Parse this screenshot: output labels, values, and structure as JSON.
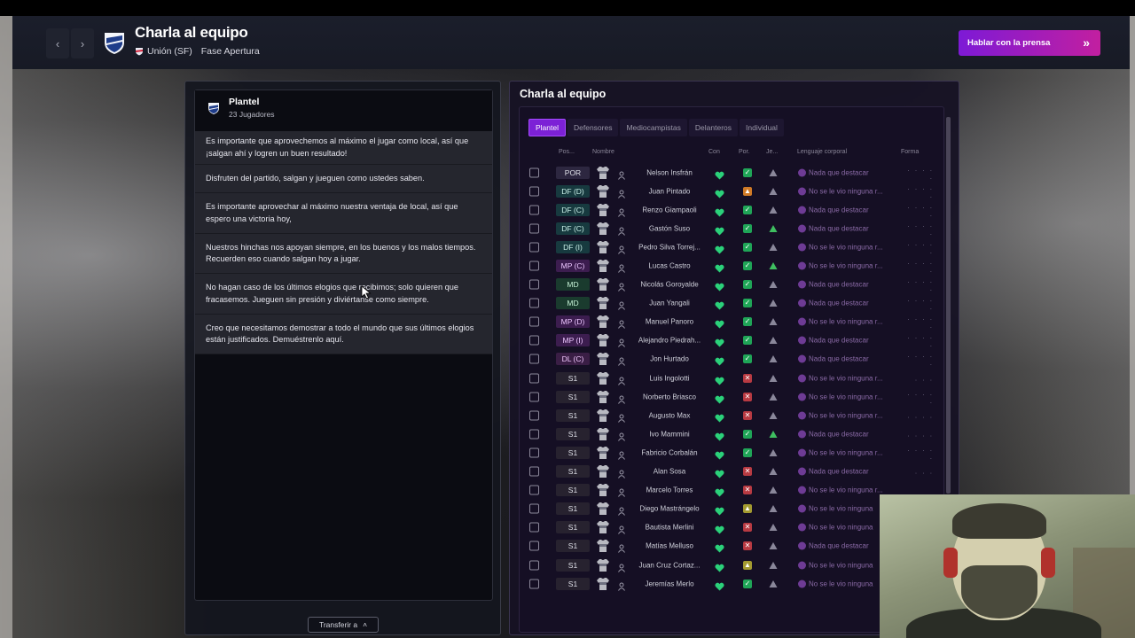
{
  "header": {
    "title": "Charla al equipo",
    "club": "Unión (SF)",
    "stage": "Fase Apertura",
    "press_button": "Hablar con la prensa"
  },
  "left": {
    "squad_name": "Plantel",
    "squad_count": "23 Jugadores",
    "talks": [
      "Es importante que aprovechemos al máximo el jugar como local, así que ¡salgan ahí y logren un buen resultado!",
      "Disfruten del partido, salgan y jueguen como ustedes saben.",
      "Es importante aprovechar al máximo nuestra ventaja de local, así que espero una victoria hoy,",
      "Nuestros hinchas nos apoyan siempre, en los buenos y los malos tiempos. Recuerden eso cuando salgan hoy a jugar.",
      "No hagan caso de los últimos elogios que recibimos; solo quieren que fracasemos. Jueguen sin presión y diviértanse como siempre.",
      "Creo que necesitamos demostrar a todo el mundo que sus últimos elogios están justificados. Demuéstrenlo aquí."
    ],
    "transfer_button": "Transferir a"
  },
  "right": {
    "title": "Charla al equipo",
    "tabs": [
      "Plantel",
      "Defensores",
      "Mediocampistas",
      "Delanteros",
      "Individual"
    ],
    "columns": {
      "pos": "Pos...",
      "name": "Nombre",
      "con": "Con",
      "por": "Por.",
      "je": "Je...",
      "body": "Lenguaje corporal",
      "form": "Forma"
    },
    "players": [
      {
        "pos": "POR",
        "cls": "gk",
        "name": "Nelson Insfrán",
        "cond": "g",
        "tri": "grey",
        "mood": "Nada que destacar",
        "form": ". . . . ."
      },
      {
        "pos": "DF (D)",
        "cls": "df",
        "name": "Juan Pintado",
        "cond": "o",
        "tri": "grey",
        "mood": "No se le vio ninguna r...",
        "form": ". . . . ."
      },
      {
        "pos": "DF (C)",
        "cls": "df",
        "name": "Renzo Giampaoli",
        "cond": "g",
        "tri": "grey",
        "mood": "Nada que destacar",
        "form": ". . . . ."
      },
      {
        "pos": "DF (C)",
        "cls": "df",
        "name": "Gastón Suso",
        "cond": "g",
        "tri": "green",
        "mood": "Nada que destacar",
        "form": ". . . . ."
      },
      {
        "pos": "DF (I)",
        "cls": "df",
        "name": "Pedro Silva Torrej...",
        "cond": "g",
        "tri": "grey",
        "mood": "No se le vio ninguna r...",
        "form": ". . . . ."
      },
      {
        "pos": "MP (C)",
        "cls": "mp",
        "name": "Lucas Castro",
        "cond": "g",
        "tri": "green",
        "mood": "No se le vio ninguna r...",
        "form": ". . . . ."
      },
      {
        "pos": "MD",
        "cls": "md",
        "name": "Nicolás Goroyalde",
        "cond": "g",
        "tri": "grey",
        "mood": "Nada que destacar",
        "form": ". . . . ."
      },
      {
        "pos": "MD",
        "cls": "md",
        "name": "Juan Yangali",
        "cond": "g",
        "tri": "grey",
        "mood": "Nada que destacar",
        "form": ". . . . ."
      },
      {
        "pos": "MP (D)",
        "cls": "mp",
        "name": "Manuel Panoro",
        "cond": "g",
        "tri": "grey",
        "mood": "No se le vio ninguna r...",
        "form": ". . . . ."
      },
      {
        "pos": "MP (I)",
        "cls": "mp",
        "name": "Alejandro Piedrah...",
        "cond": "g",
        "tri": "grey",
        "mood": "Nada que destacar",
        "form": ". . . . ."
      },
      {
        "pos": "DL (C)",
        "cls": "dl",
        "name": "Jon Hurtado",
        "cond": "g",
        "tri": "grey",
        "mood": "Nada que destacar",
        "form": ". . . . ."
      },
      {
        "pos": "S1",
        "cls": "sub",
        "name": "Luis Ingolotti",
        "cond": "r",
        "tri": "grey",
        "mood": "No se le vio ninguna r...",
        "form": ". . ."
      },
      {
        "pos": "S1",
        "cls": "sub",
        "name": "Norberto Briasco",
        "cond": "r",
        "tri": "grey",
        "mood": "No se le vio ninguna r...",
        "form": ". . . . ."
      },
      {
        "pos": "S1",
        "cls": "sub",
        "name": "Augusto Max",
        "cond": "r",
        "tri": "grey",
        "mood": "No se le vio ninguna r...",
        "form": ". . . ."
      },
      {
        "pos": "S1",
        "cls": "sub",
        "name": "Ivo Mammini",
        "cond": "g",
        "tri": "green",
        "mood": "Nada que destacar",
        "form": ". . . ."
      },
      {
        "pos": "S1",
        "cls": "sub",
        "name": "Fabricio Corbalán",
        "cond": "g",
        "tri": "grey",
        "mood": "No se le vio ninguna r...",
        "form": ". . . . ."
      },
      {
        "pos": "S1",
        "cls": "sub",
        "name": "Alan Sosa",
        "cond": "r",
        "tri": "grey",
        "mood": "Nada que destacar",
        "form": ". . ."
      },
      {
        "pos": "S1",
        "cls": "sub",
        "name": "Marcelo Torres",
        "cond": "r",
        "tri": "grey",
        "mood": "No se le vio ninguna r...",
        "form": ""
      },
      {
        "pos": "S1",
        "cls": "sub",
        "name": "Diego Mastrángelo",
        "cond": "y",
        "tri": "grey",
        "mood": "No se le vio ninguna",
        "form": ""
      },
      {
        "pos": "S1",
        "cls": "sub",
        "name": "Bautista Merlini",
        "cond": "r",
        "tri": "grey",
        "mood": "No se le vio ninguna",
        "form": ""
      },
      {
        "pos": "S1",
        "cls": "sub",
        "name": "Matías Melluso",
        "cond": "r",
        "tri": "grey",
        "mood": "Nada que destacar",
        "form": ""
      },
      {
        "pos": "S1",
        "cls": "sub",
        "name": "Juan Cruz Cortaz...",
        "cond": "y",
        "tri": "grey",
        "mood": "No se le vio ninguna",
        "form": ""
      },
      {
        "pos": "S1",
        "cls": "sub",
        "name": "Jeremías Merlo",
        "cond": "g",
        "tri": "grey",
        "mood": "No se le vio ninguna",
        "form": ""
      }
    ]
  },
  "colors": {
    "accent_purple": "#7c21d6",
    "press_gradient_start": "#7d1ad6",
    "press_gradient_end": "#c21fa0",
    "condition_good": "#1fa557",
    "condition_bad": "#b83a42"
  }
}
